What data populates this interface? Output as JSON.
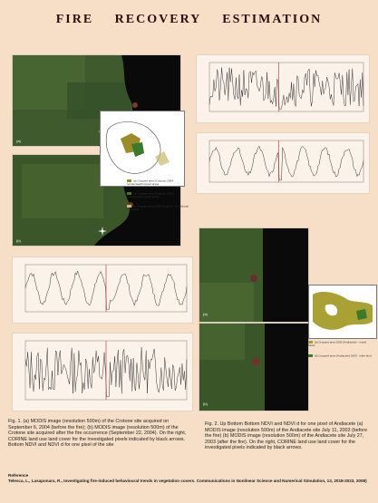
{
  "title": "FIRE RECOVERY ESTIMATION",
  "labels": {
    "a": "(a)",
    "b": "(b)"
  },
  "legend_crotone": [
    "(a) Cropped area (Crotone) 2004, recolonised/cropped areas",
    "(b) Cropped area (Crotone) 2004, recolonised/cropped areas",
    "(c) Cropped area 2004 (Crotone) - transitional woodland"
  ],
  "legend_andiacete": [
    "(a) Cropped area 2003 (Andiacete) - mixed forest",
    "(b) Cropped area (Andiacete) 2003 - other land"
  ],
  "captions": {
    "fig1": "Fig. 1. (a) MODIS image (resolution 500m) of the Crotone site acquired on September 6, 2004 (before the fire); (b) MODIS image (resolution 500m) of the Crotone site acquired after the fire occurrence (September 22, 2004). On the right, CORINE land use land cover for the investigated pixels indicated by black arrows. Bottom NDVI and NDVI d for one pixel of the site",
    "fig2": "Fig. 2. Up Bottom Bottom NDVI and NDVI d for one pixel of Andiacete (a) MODIS image (resolution 500m) of the Andiacete site July 11, 2003 (before the fire) (b) MODIS image (resolution 500m) of the Andiacete site July 27, 2003 (after the fire). On the right, CORINE land use land cover for the investigated pixels indicated by black arrows."
  },
  "reference": {
    "heading": "Reference",
    "text": "Telesca, L., Lasaponara, R., Investigating fire-induced behavioural trends in vegetation covers. Communications in Nonlinear Science and Numerical Simulation, 13, 2018-2023, 2008)"
  }
}
